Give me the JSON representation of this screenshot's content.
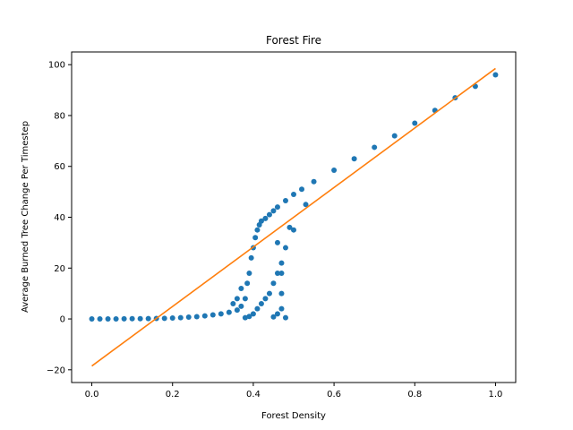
{
  "chart_data": {
    "type": "scatter",
    "title": "Forest Fire",
    "xlabel": "Forest Density",
    "ylabel": "Average Burned Tree Change Per Timestep",
    "xlim": [
      -0.05,
      1.05
    ],
    "ylim": [
      -25,
      105
    ],
    "xticks": [
      0.0,
      0.2,
      0.4,
      0.6,
      0.8,
      1.0
    ],
    "xtick_labels": [
      "0.0",
      "0.2",
      "0.4",
      "0.6",
      "0.8",
      "1.0"
    ],
    "yticks": [
      -20,
      0,
      20,
      40,
      60,
      80,
      100
    ],
    "ytick_labels": [
      "−20",
      "0",
      "20",
      "40",
      "60",
      "80",
      "100"
    ],
    "grid": false,
    "legend": "none",
    "series": [
      {
        "kind": "scatter",
        "color": "#1f77b4",
        "points": [
          [
            0.0,
            0.0
          ],
          [
            0.02,
            0.0
          ],
          [
            0.04,
            0.0
          ],
          [
            0.06,
            0.0
          ],
          [
            0.08,
            0.05
          ],
          [
            0.1,
            0.1
          ],
          [
            0.12,
            0.1
          ],
          [
            0.14,
            0.15
          ],
          [
            0.16,
            0.2
          ],
          [
            0.18,
            0.25
          ],
          [
            0.2,
            0.35
          ],
          [
            0.22,
            0.5
          ],
          [
            0.24,
            0.7
          ],
          [
            0.26,
            0.9
          ],
          [
            0.28,
            1.2
          ],
          [
            0.3,
            1.6
          ],
          [
            0.32,
            2.0
          ],
          [
            0.34,
            2.6
          ],
          [
            0.36,
            3.5
          ],
          [
            0.37,
            5.0
          ],
          [
            0.38,
            8.0
          ],
          [
            0.385,
            14.0
          ],
          [
            0.39,
            18.0
          ],
          [
            0.395,
            24.0
          ],
          [
            0.4,
            28.0
          ],
          [
            0.405,
            32.0
          ],
          [
            0.41,
            35.0
          ],
          [
            0.415,
            37.0
          ],
          [
            0.42,
            38.5
          ],
          [
            0.43,
            39.5
          ],
          [
            0.44,
            41.0
          ],
          [
            0.45,
            42.5
          ],
          [
            0.46,
            44.0
          ],
          [
            0.48,
            46.5
          ],
          [
            0.5,
            49.0
          ],
          [
            0.52,
            51.0
          ],
          [
            0.55,
            54.0
          ],
          [
            0.6,
            58.5
          ],
          [
            0.65,
            63.0
          ],
          [
            0.7,
            67.5
          ],
          [
            0.75,
            72.0
          ],
          [
            0.8,
            77.0
          ],
          [
            0.85,
            82.0
          ],
          [
            0.9,
            87.0
          ],
          [
            0.95,
            91.5
          ],
          [
            1.0,
            96.0
          ],
          [
            0.38,
            0.5
          ],
          [
            0.39,
            1.0
          ],
          [
            0.4,
            2.0
          ],
          [
            0.41,
            4.0
          ],
          [
            0.42,
            6.0
          ],
          [
            0.43,
            8.0
          ],
          [
            0.44,
            10.0
          ],
          [
            0.45,
            14.0
          ],
          [
            0.46,
            18.0
          ],
          [
            0.47,
            22.0
          ],
          [
            0.48,
            28.0
          ],
          [
            0.49,
            36.0
          ],
          [
            0.45,
            0.8
          ],
          [
            0.46,
            2.0
          ],
          [
            0.47,
            4.0
          ],
          [
            0.47,
            10.0
          ],
          [
            0.46,
            30.0
          ],
          [
            0.47,
            18.0
          ],
          [
            0.5,
            35.0
          ],
          [
            0.53,
            45.0
          ],
          [
            0.36,
            8.0
          ],
          [
            0.35,
            6.0
          ],
          [
            0.37,
            12.0
          ],
          [
            0.48,
            0.5
          ]
        ]
      },
      {
        "kind": "line",
        "color": "#ff7f0e",
        "label": "",
        "x": [
          0.0,
          1.0
        ],
        "y": [
          -18.5,
          98.5
        ]
      }
    ]
  }
}
